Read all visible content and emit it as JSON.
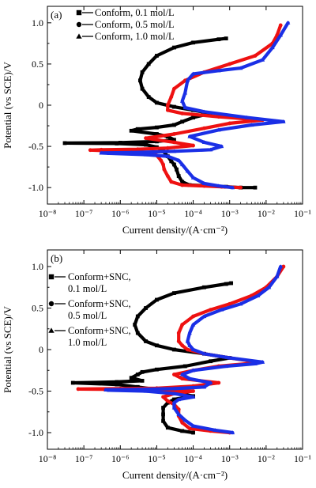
{
  "chart_data": [
    {
      "type": "line",
      "panel_label": "(a)",
      "xlabel": "Current density/(A·cm⁻²)",
      "ylabel": "Potential (vs SCE)/V",
      "xscale": "log",
      "xlim": [
        1e-08,
        0.1
      ],
      "ylim": [
        -1.2,
        1.2
      ],
      "x_tick_labels": [
        "10⁻⁸",
        "10⁻⁷",
        "10⁻⁶",
        "10⁻⁵",
        "10⁻⁴",
        "10⁻³",
        "10⁻²",
        "10⁻¹"
      ],
      "y_tick_labels": [
        "-1.0",
        "-0.5",
        "0",
        "0.5",
        "1.0"
      ],
      "legend_position": "top-left",
      "legend": [
        {
          "label": "Conform, 0.1 mol/L",
          "marker": "square"
        },
        {
          "label": "Conform, 0.5 mol/L",
          "marker": "circle"
        },
        {
          "label": "Conform, 1.0 mol/L",
          "marker": "triangle"
        }
      ],
      "series": [
        {
          "name": "Conform, 0.1 mol/L",
          "color": "#000000",
          "marker": "square",
          "points": [
            [
              0.005,
              -1.0
            ],
            [
              0.002,
              -1.0
            ],
            [
              0.0008,
              -0.99
            ],
            [
              0.0003,
              -0.98
            ],
            [
              8e-05,
              -0.97
            ],
            [
              5e-05,
              -0.93
            ],
            [
              4e-05,
              -0.86
            ],
            [
              3.5e-05,
              -0.78
            ],
            [
              3e-05,
              -0.72
            ],
            [
              2.5e-05,
              -0.68
            ],
            [
              2e-05,
              -0.62
            ],
            [
              1.5e-05,
              -0.56
            ],
            [
              1e-05,
              -0.51
            ],
            [
              5e-06,
              -0.48
            ],
            [
              8e-07,
              -0.465
            ],
            [
              3e-08,
              -0.46
            ],
            [
              1e-06,
              -0.455
            ],
            [
              1e-05,
              -0.44
            ],
            [
              3e-05,
              -0.42
            ],
            [
              2e-05,
              -0.38
            ],
            [
              1e-05,
              -0.35
            ],
            [
              2e-06,
              -0.31
            ],
            [
              3e-06,
              -0.29
            ],
            [
              1e-05,
              -0.27
            ],
            [
              3e-05,
              -0.24
            ],
            [
              5e-05,
              -0.2
            ],
            [
              0.0001,
              -0.15
            ],
            [
              0.0003,
              -0.1
            ],
            [
              0.0001,
              -0.06
            ],
            [
              3e-05,
              -0.02
            ],
            [
              1e-05,
              0.03
            ],
            [
              6e-06,
              0.1
            ],
            [
              4e-06,
              0.2
            ],
            [
              3.5e-06,
              0.3
            ],
            [
              4e-06,
              0.4
            ],
            [
              6e-06,
              0.5
            ],
            [
              1e-05,
              0.6
            ],
            [
              3e-05,
              0.7
            ],
            [
              0.0001,
              0.76
            ],
            [
              0.0005,
              0.8
            ],
            [
              0.0008,
              0.81
            ]
          ]
        },
        {
          "name": "Conform, 0.5 mol/L",
          "color": "#ee1111",
          "marker": "circle",
          "points": [
            [
              0.002,
              -1.0
            ],
            [
              0.0006,
              -0.99
            ],
            [
              0.0002,
              -0.98
            ],
            [
              5e-05,
              -0.97
            ],
            [
              2.5e-05,
              -0.93
            ],
            [
              2e-05,
              -0.86
            ],
            [
              1.6e-05,
              -0.78
            ],
            [
              1.5e-05,
              -0.72
            ],
            [
              1.3e-05,
              -0.67
            ],
            [
              1e-05,
              -0.61
            ],
            [
              7e-06,
              -0.58
            ],
            [
              3e-06,
              -0.56
            ],
            [
              3e-07,
              -0.55
            ],
            [
              1.5e-07,
              -0.545
            ],
            [
              3e-07,
              -0.54
            ],
            [
              3e-06,
              -0.535
            ],
            [
              2e-05,
              -0.52
            ],
            [
              0.0001,
              -0.49
            ],
            [
              3e-05,
              -0.45
            ],
            [
              5e-06,
              -0.4
            ],
            [
              3e-05,
              -0.35
            ],
            [
              0.0002,
              -0.28
            ],
            [
              0.001,
              -0.22
            ],
            [
              0.008,
              -0.18
            ],
            [
              0.0005,
              -0.14
            ],
            [
              5e-05,
              -0.1
            ],
            [
              2e-05,
              -0.06
            ],
            [
              2e-05,
              0.0
            ],
            [
              2.5e-05,
              0.1
            ],
            [
              3e-05,
              0.2
            ],
            [
              6e-05,
              0.3
            ],
            [
              0.0002,
              0.4
            ],
            [
              0.001,
              0.5
            ],
            [
              0.005,
              0.6
            ],
            [
              0.015,
              0.75
            ],
            [
              0.02,
              0.85
            ],
            [
              0.025,
              0.97
            ]
          ]
        },
        {
          "name": "Conform, 1.0 mol/L",
          "color": "#1a2fe6",
          "marker": "triangle",
          "points": [
            [
              0.0012,
              -1.0
            ],
            [
              0.0005,
              -0.98
            ],
            [
              0.0002,
              -0.95
            ],
            [
              0.0001,
              -0.88
            ],
            [
              7e-05,
              -0.8
            ],
            [
              5e-05,
              -0.72
            ],
            [
              4e-05,
              -0.67
            ],
            [
              2e-05,
              -0.62
            ],
            [
              5e-06,
              -0.6
            ],
            [
              5e-07,
              -0.585
            ],
            [
              3e-07,
              -0.58
            ],
            [
              2e-06,
              -0.575
            ],
            [
              3e-05,
              -0.56
            ],
            [
              0.0003,
              -0.54
            ],
            [
              0.0006,
              -0.5
            ],
            [
              0.0002,
              -0.45
            ],
            [
              8e-05,
              -0.38
            ],
            [
              0.0005,
              -0.3
            ],
            [
              0.004,
              -0.24
            ],
            [
              0.03,
              -0.2
            ],
            [
              0.003,
              -0.15
            ],
            [
              0.0002,
              -0.08
            ],
            [
              6e-05,
              -0.03
            ],
            [
              5e-05,
              0.05
            ],
            [
              6e-05,
              0.15
            ],
            [
              7e-05,
              0.3
            ],
            [
              0.0001,
              0.38
            ],
            [
              0.0005,
              0.42
            ],
            [
              0.002,
              0.45
            ],
            [
              0.008,
              0.55
            ],
            [
              0.015,
              0.7
            ],
            [
              0.025,
              0.85
            ],
            [
              0.04,
              1.0
            ]
          ]
        }
      ]
    },
    {
      "type": "line",
      "panel_label": "(b)",
      "xlabel": "Current density/(A·cm⁻²)",
      "ylabel": "Potential (vs SCE)/V",
      "xscale": "log",
      "xlim": [
        1e-08,
        0.1
      ],
      "ylim": [
        -1.2,
        1.2
      ],
      "x_tick_labels": [
        "10⁻⁸",
        "10⁻⁷",
        "10⁻⁶",
        "10⁻⁵",
        "10⁻⁴",
        "10⁻³",
        "10⁻²",
        "10⁻¹"
      ],
      "y_tick_labels": [
        "-1.0",
        "-0.5",
        "0",
        "0.5",
        "1.0"
      ],
      "legend_position": "top-left",
      "legend": [
        {
          "label_lines": [
            "Conform+SNC,",
            "0.1 mol/L"
          ],
          "marker": "square"
        },
        {
          "label_lines": [
            "Conform+SNC,",
            "0.5 mol/L"
          ],
          "marker": "circle"
        },
        {
          "label_lines": [
            "Conform+SNC,",
            "1.0 mol/L"
          ],
          "marker": "triangle"
        }
      ],
      "series": [
        {
          "name": "Conform+SNC, 0.1 mol/L",
          "color": "#000000",
          "marker": "square",
          "points": [
            [
              0.0001,
              -1.0
            ],
            [
              5e-05,
              -0.98
            ],
            [
              2e-05,
              -0.94
            ],
            [
              1.5e-05,
              -0.86
            ],
            [
              1.5e-05,
              -0.78
            ],
            [
              1.5e-05,
              -0.7
            ],
            [
              2e-05,
              -0.64
            ],
            [
              3e-05,
              -0.6
            ],
            [
              0.0001,
              -0.56
            ],
            [
              3e-05,
              -0.52
            ],
            [
              1e-05,
              -0.48
            ],
            [
              3e-06,
              -0.45
            ],
            [
              8e-07,
              -0.42
            ],
            [
              5e-08,
              -0.4
            ],
            [
              8e-07,
              -0.39
            ],
            [
              4e-06,
              -0.375
            ],
            [
              2e-06,
              -0.34
            ],
            [
              3e-06,
              -0.3
            ],
            [
              4e-06,
              -0.27
            ],
            [
              1e-05,
              -0.24
            ],
            [
              6e-05,
              -0.2
            ],
            [
              0.0003,
              -0.14
            ],
            [
              0.001,
              -0.1
            ],
            [
              0.0002,
              -0.05
            ],
            [
              3e-05,
              0.0
            ],
            [
              1e-05,
              0.05
            ],
            [
              5e-06,
              0.1
            ],
            [
              3e-06,
              0.2
            ],
            [
              2.5e-06,
              0.3
            ],
            [
              3e-06,
              0.4
            ],
            [
              5e-06,
              0.5
            ],
            [
              1e-05,
              0.6
            ],
            [
              3e-05,
              0.68
            ],
            [
              0.0002,
              0.75
            ],
            [
              0.0008,
              0.79
            ],
            [
              0.0011,
              0.8
            ]
          ]
        },
        {
          "name": "Conform+SNC, 0.5 mol/L",
          "color": "#ee1111",
          "marker": "circle",
          "points": [
            [
              0.001,
              -1.0
            ],
            [
              0.0003,
              -0.98
            ],
            [
              8e-05,
              -0.95
            ],
            [
              5e-05,
              -0.88
            ],
            [
              4e-05,
              -0.8
            ],
            [
              4e-05,
              -0.72
            ],
            [
              3e-05,
              -0.66
            ],
            [
              2e-05,
              -0.62
            ],
            [
              1.5e-05,
              -0.57
            ],
            [
              3e-05,
              -0.53
            ],
            [
              0.0001,
              -0.5
            ],
            [
              1e-05,
              -0.485
            ],
            [
              1e-06,
              -0.48
            ],
            [
              7e-08,
              -0.475
            ],
            [
              1e-06,
              -0.47
            ],
            [
              1e-05,
              -0.465
            ],
            [
              0.0001,
              -0.44
            ],
            [
              0.0005,
              -0.4
            ],
            [
              5e-05,
              -0.35
            ],
            [
              3e-05,
              -0.3
            ],
            [
              0.0001,
              -0.25
            ],
            [
              0.0005,
              -0.2
            ],
            [
              0.003,
              -0.17
            ],
            [
              0.006,
              -0.15
            ],
            [
              0.001,
              -0.1
            ],
            [
              0.0002,
              -0.05
            ],
            [
              7e-05,
              0.0
            ],
            [
              5e-05,
              0.05
            ],
            [
              4e-05,
              0.1
            ],
            [
              4e-05,
              0.2
            ],
            [
              5e-05,
              0.3
            ],
            [
              0.0001,
              0.4
            ],
            [
              0.0003,
              0.48
            ],
            [
              0.001,
              0.55
            ],
            [
              0.004,
              0.65
            ],
            [
              0.01,
              0.75
            ],
            [
              0.02,
              0.88
            ],
            [
              0.03,
              1.0
            ]
          ]
        },
        {
          "name": "Conform+SNC, 1.0 mol/L",
          "color": "#1a2fe6",
          "marker": "triangle",
          "points": [
            [
              0.0012,
              -1.0
            ],
            [
              0.0004,
              -0.97
            ],
            [
              0.0001,
              -0.92
            ],
            [
              6e-05,
              -0.85
            ],
            [
              4e-05,
              -0.78
            ],
            [
              3e-05,
              -0.7
            ],
            [
              3e-05,
              -0.64
            ],
            [
              4e-05,
              -0.6
            ],
            [
              0.0001,
              -0.57
            ],
            [
              3e-05,
              -0.53
            ],
            [
              5e-06,
              -0.5
            ],
            [
              5e-07,
              -0.49
            ],
            [
              4e-07,
              -0.485
            ],
            [
              3e-06,
              -0.48
            ],
            [
              3e-05,
              -0.47
            ],
            [
              0.0002,
              -0.45
            ],
            [
              0.0003,
              -0.4
            ],
            [
              8e-05,
              -0.35
            ],
            [
              5e-05,
              -0.3
            ],
            [
              0.0001,
              -0.25
            ],
            [
              0.0008,
              -0.2
            ],
            [
              0.005,
              -0.17
            ],
            [
              0.008,
              -0.15
            ],
            [
              0.001,
              -0.1
            ],
            [
              0.0002,
              -0.05
            ],
            [
              0.0001,
              0.0
            ],
            [
              8e-05,
              0.05
            ],
            [
              7e-05,
              0.1
            ],
            [
              8e-05,
              0.2
            ],
            [
              0.0001,
              0.3
            ],
            [
              0.0002,
              0.4
            ],
            [
              0.0006,
              0.48
            ],
            [
              0.002,
              0.55
            ],
            [
              0.006,
              0.65
            ],
            [
              0.012,
              0.75
            ],
            [
              0.02,
              0.88
            ],
            [
              0.025,
              1.0
            ]
          ]
        }
      ]
    }
  ]
}
